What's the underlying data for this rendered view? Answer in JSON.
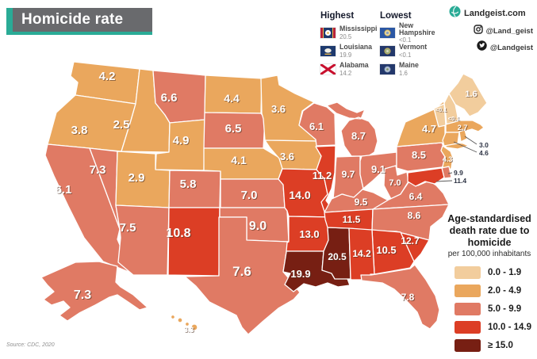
{
  "title": {
    "text": "Homicide rate"
  },
  "branding": {
    "site": "Landgeist.com",
    "instagram": "@Land_geist",
    "twitter": "@Landgeist"
  },
  "rankings": {
    "highest": {
      "label": "Highest",
      "entries": [
        {
          "state": "Mississippi",
          "value": "20.5"
        },
        {
          "state": "Louisiana",
          "value": "19.9"
        },
        {
          "state": "Alabama",
          "value": "14.2"
        }
      ]
    },
    "lowest": {
      "label": "Lowest",
      "entries": [
        {
          "state": "New Hampshire",
          "value": "<0.1"
        },
        {
          "state": "Vermont",
          "value": "<0.1"
        },
        {
          "state": "Maine",
          "value": "1.6"
        }
      ]
    }
  },
  "legend": {
    "title_lines": [
      "Age-standardised",
      "death rate due to",
      "homicide"
    ],
    "subtitle": "per 100,000 inhabitants",
    "classes": [
      {
        "label": "0.0  -  1.9",
        "color": "#F2CD9D"
      },
      {
        "label": "2.0  -  4.9",
        "color": "#EAA75D"
      },
      {
        "label": "5.0  -  9.9",
        "color": "#E07A64"
      },
      {
        "label": "10.0 - 14.9",
        "color": "#DC3E25"
      },
      {
        "label": "≥ 15.0",
        "color": "#771F13"
      }
    ]
  },
  "source": "Source: CDC, 2020",
  "chart_data": {
    "type": "choropleth",
    "region": "United States",
    "metric": "Age-standardised death rate due to homicide per 100,000 inhabitants",
    "classes": [
      "0.0 - 1.9",
      "2.0 - 4.9",
      "5.0 - 9.9",
      "10.0 - 14.9",
      "≥ 15.0"
    ],
    "states": [
      {
        "id": "WA",
        "name": "Washington",
        "value": "4.2",
        "class_index": 1
      },
      {
        "id": "OR",
        "name": "Oregon",
        "value": "3.8",
        "class_index": 1
      },
      {
        "id": "CA",
        "name": "California",
        "value": "6.1",
        "class_index": 2
      },
      {
        "id": "NV",
        "name": "Nevada",
        "value": "7.3",
        "class_index": 2
      },
      {
        "id": "ID",
        "name": "Idaho",
        "value": "2.5",
        "class_index": 1
      },
      {
        "id": "MT",
        "name": "Montana",
        "value": "6.6",
        "class_index": 2
      },
      {
        "id": "WY",
        "name": "Wyoming",
        "value": "4.9",
        "class_index": 1
      },
      {
        "id": "UT",
        "name": "Utah",
        "value": "2.9",
        "class_index": 1
      },
      {
        "id": "CO",
        "name": "Colorado",
        "value": "5.8",
        "class_index": 2
      },
      {
        "id": "AZ",
        "name": "Arizona",
        "value": "7.5",
        "class_index": 2
      },
      {
        "id": "NM",
        "name": "New Mexico",
        "value": "10.8",
        "class_index": 3
      },
      {
        "id": "AK",
        "name": "Alaska",
        "value": "7.3",
        "class_index": 2
      },
      {
        "id": "HI",
        "name": "Hawaii",
        "value": "3.3",
        "class_index": 1
      },
      {
        "id": "ND",
        "name": "North Dakota",
        "value": "4.4",
        "class_index": 1
      },
      {
        "id": "SD",
        "name": "South Dakota",
        "value": "6.5",
        "class_index": 2
      },
      {
        "id": "NE",
        "name": "Nebraska",
        "value": "4.1",
        "class_index": 1
      },
      {
        "id": "KS",
        "name": "Kansas",
        "value": "7.0",
        "class_index": 2
      },
      {
        "id": "OK",
        "name": "Oklahoma",
        "value": "9.0",
        "class_index": 2
      },
      {
        "id": "TX",
        "name": "Texas",
        "value": "7.6",
        "class_index": 2
      },
      {
        "id": "MN",
        "name": "Minnesota",
        "value": "3.6",
        "class_index": 1
      },
      {
        "id": "IA",
        "name": "Iowa",
        "value": "3.6",
        "class_index": 1
      },
      {
        "id": "MO",
        "name": "Missouri",
        "value": "14.0",
        "class_index": 3
      },
      {
        "id": "AR",
        "name": "Arkansas",
        "value": "13.0",
        "class_index": 3
      },
      {
        "id": "LA",
        "name": "Louisiana",
        "value": "19.9",
        "class_index": 4
      },
      {
        "id": "WI",
        "name": "Wisconsin",
        "value": "6.1",
        "class_index": 2
      },
      {
        "id": "IL",
        "name": "Illinois",
        "value": "11.2",
        "class_index": 3
      },
      {
        "id": "MS",
        "name": "Mississippi",
        "value": "20.5",
        "class_index": 4
      },
      {
        "id": "MI",
        "name": "Michigan",
        "value": "8.7",
        "class_index": 2
      },
      {
        "id": "IN",
        "name": "Indiana",
        "value": "9.7",
        "class_index": 2
      },
      {
        "id": "OH",
        "name": "Ohio",
        "value": "9.1",
        "class_index": 2
      },
      {
        "id": "KY",
        "name": "Kentucky",
        "value": "9.5",
        "class_index": 2
      },
      {
        "id": "TN",
        "name": "Tennessee",
        "value": "11.5",
        "class_index": 3
      },
      {
        "id": "WV",
        "name": "West Virginia",
        "value": "7.0",
        "class_index": 2
      },
      {
        "id": "VA",
        "name": "Virginia",
        "value": "6.4",
        "class_index": 2
      },
      {
        "id": "NC",
        "name": "North Carolina",
        "value": "8.6",
        "class_index": 2
      },
      {
        "id": "SC",
        "name": "South Carolina",
        "value": "12.7",
        "class_index": 3
      },
      {
        "id": "GA",
        "name": "Georgia",
        "value": "10.5",
        "class_index": 3
      },
      {
        "id": "AL",
        "name": "Alabama",
        "value": "14.2",
        "class_index": 3
      },
      {
        "id": "FL",
        "name": "Florida",
        "value": "7.8",
        "class_index": 2
      },
      {
        "id": "PA",
        "name": "Pennsylvania",
        "value": "8.5",
        "class_index": 2
      },
      {
        "id": "NY",
        "name": "New York",
        "value": "4.7",
        "class_index": 1
      },
      {
        "id": "NJ",
        "name": "New Jersey",
        "value": "4.3",
        "class_index": 1
      },
      {
        "id": "ME",
        "name": "Maine",
        "value": "1.6",
        "class_index": 0
      },
      {
        "id": "VT",
        "name": "Vermont",
        "value": "<0.1",
        "class_index": 0
      },
      {
        "id": "NH",
        "name": "New Hampshire",
        "value": "<0.1",
        "class_index": 0
      },
      {
        "id": "MA",
        "name": "Massachusetts",
        "value": "2.7",
        "class_index": 1
      },
      {
        "id": "RI",
        "name": "Rhode Island",
        "value": "3.0",
        "class_index": 1
      },
      {
        "id": "CT",
        "name": "Connecticut",
        "value": "4.6",
        "class_index": 1
      },
      {
        "id": "DE",
        "name": "Delaware",
        "value": "9.9",
        "class_index": 2
      },
      {
        "id": "MD",
        "name": "Maryland",
        "value": "11.4",
        "class_index": 3
      }
    ]
  }
}
